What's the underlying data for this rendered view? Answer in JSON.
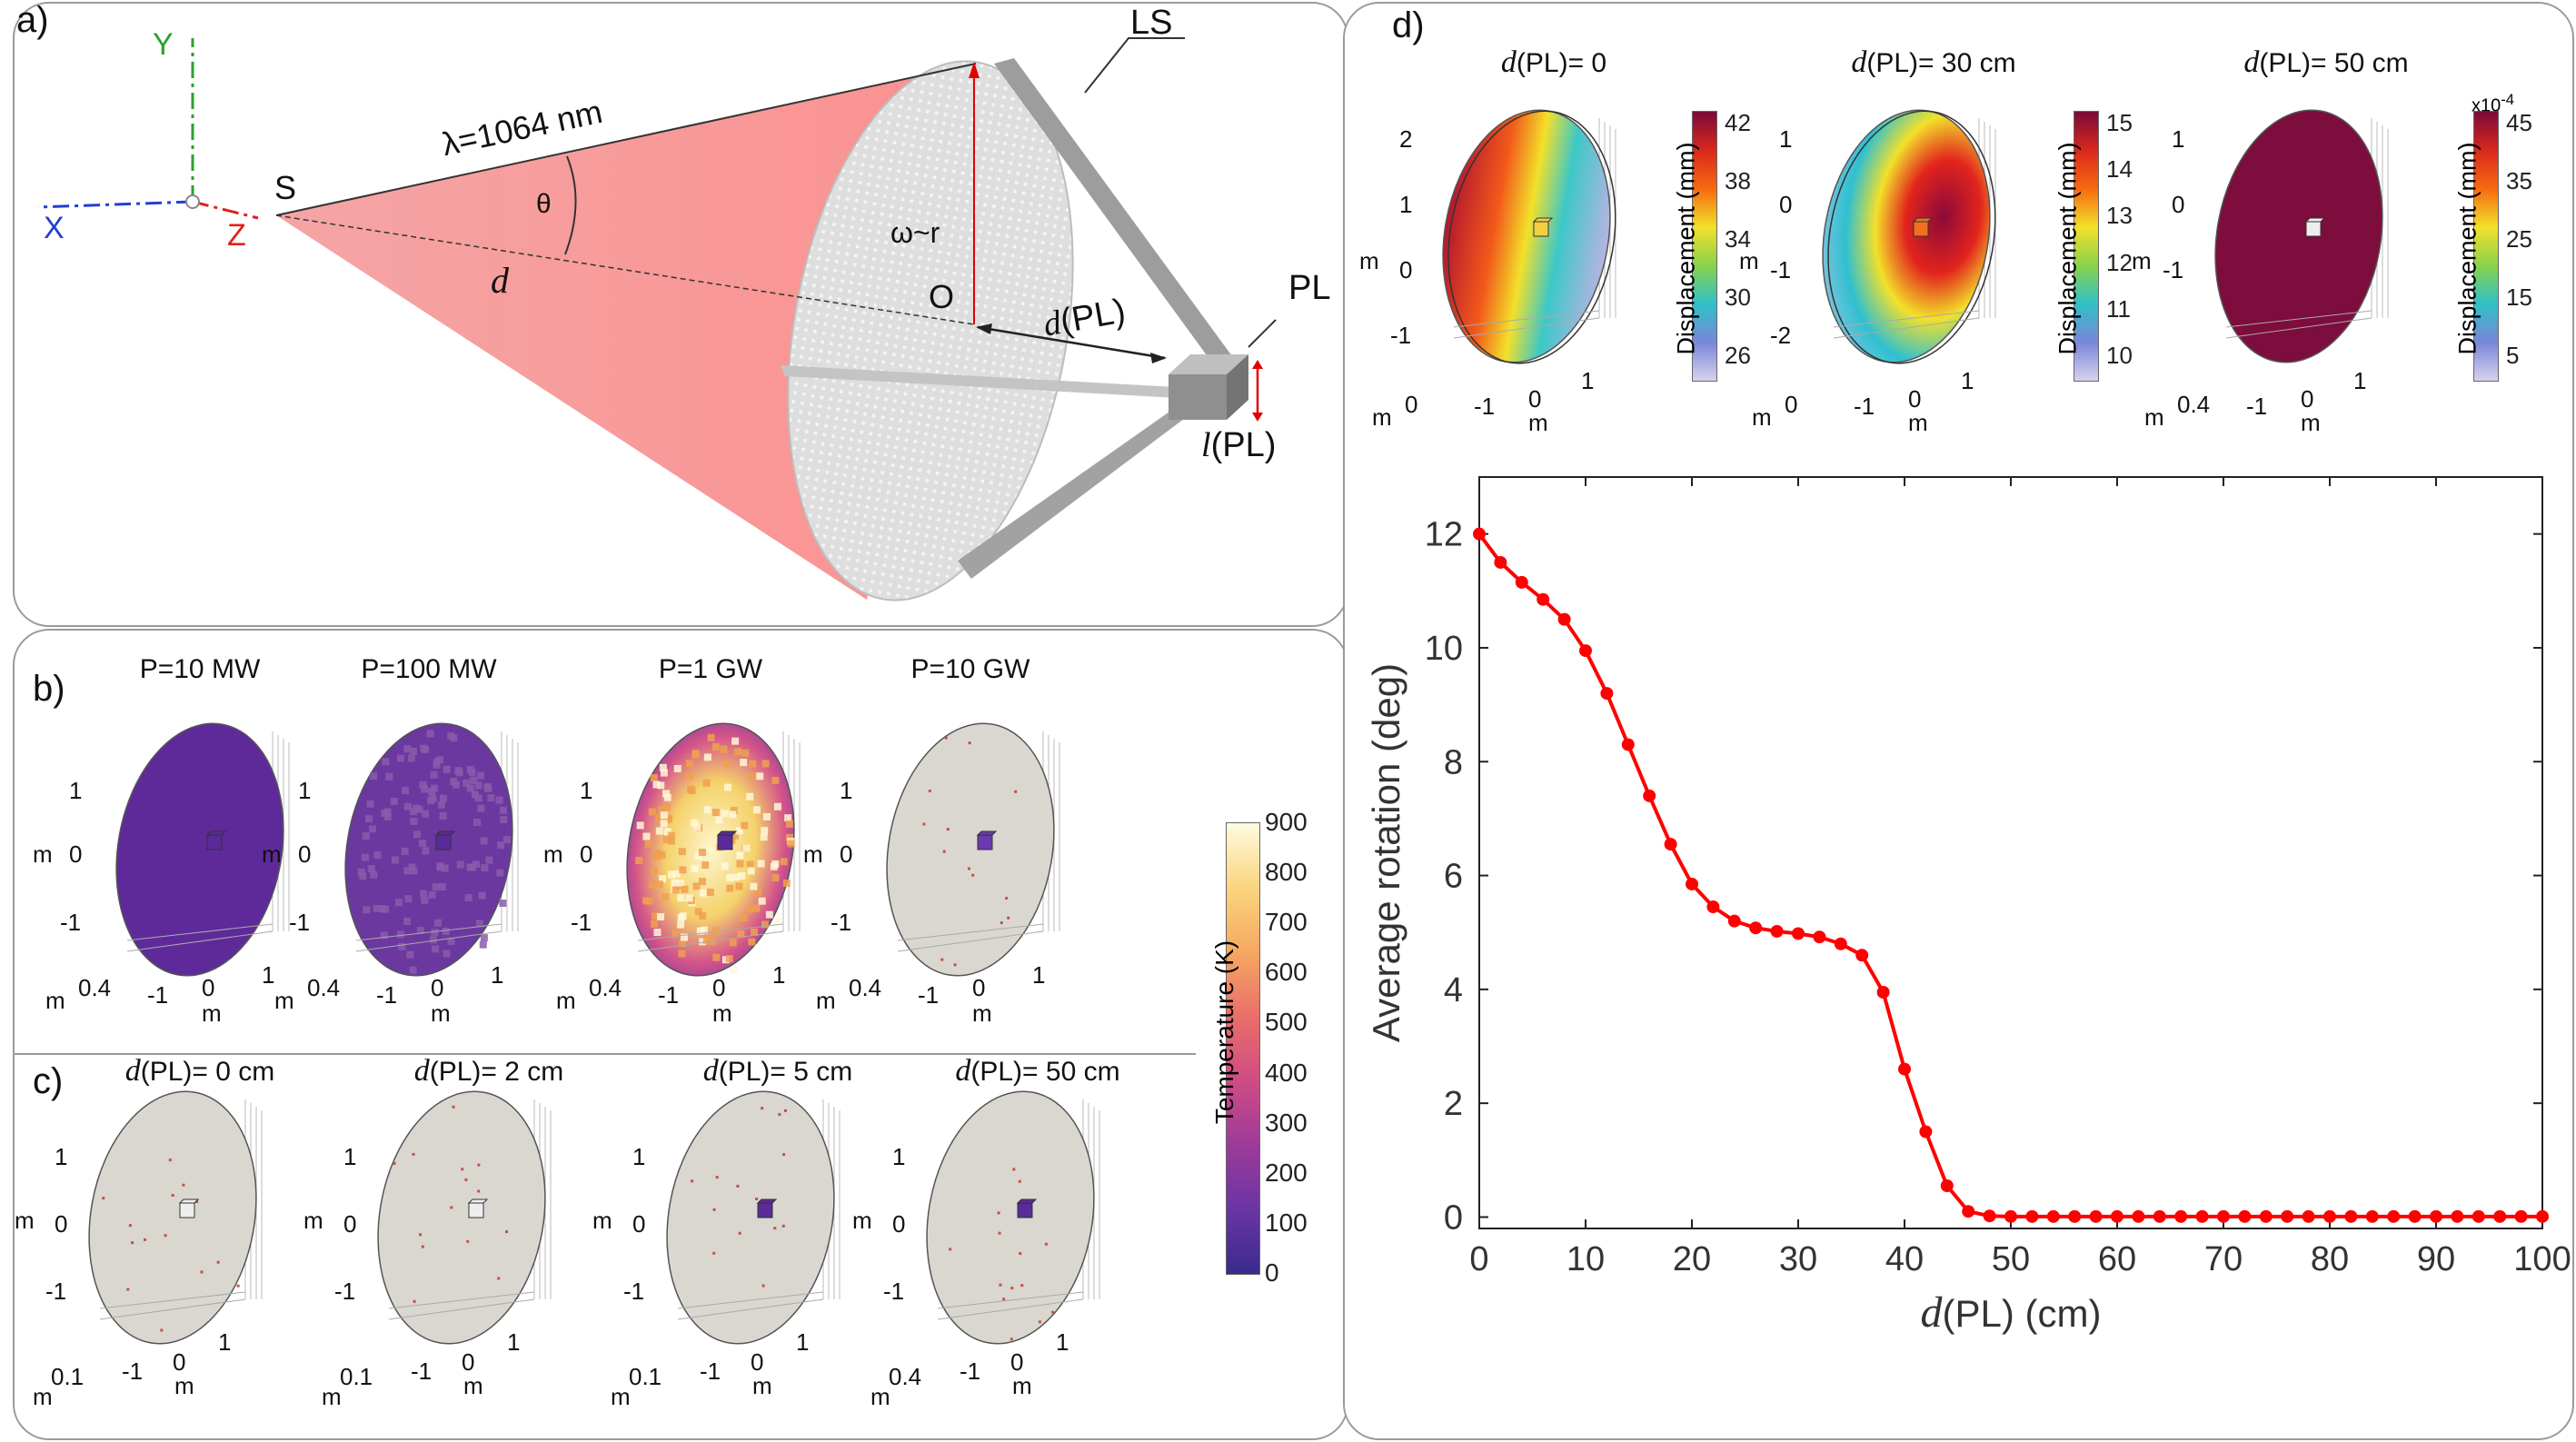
{
  "panel_a": {
    "label": "a)",
    "axis_y": "Y",
    "axis_x": "X",
    "axis_z": "Z",
    "source": "S",
    "wavelength": "λ=1064 nm",
    "theta": "θ",
    "distance": "d",
    "sail": "LS",
    "radius": "ω~r",
    "center": "O",
    "dpl_italic": "d",
    "dpl_rest": "(PL)",
    "payload": "PL",
    "lpl_italic": "l",
    "lpl_rest": "(PL)"
  },
  "panel_b": {
    "label": "b)",
    "titles": [
      "P=10 MW",
      "P=100 MW",
      "P=1 GW",
      "P=10 GW"
    ],
    "y_ticks": [
      "1",
      "0",
      "-1"
    ],
    "y_unit": "m",
    "x_ticks": [
      "0.4",
      "-1",
      "0",
      "1"
    ],
    "x_unit_left": "m",
    "x_unit_mid": "m"
  },
  "panel_c": {
    "label": "c)",
    "titles": [
      {
        "it": "d",
        "rest": "(PL)= 0 cm"
      },
      {
        "it": "d",
        "rest": "(PL)= 2 cm"
      },
      {
        "it": "d",
        "rest": "(PL)= 5 cm"
      },
      {
        "it": "d",
        "rest": "(PL)= 50 cm"
      }
    ],
    "y_ticks": [
      "1",
      "0",
      "-1"
    ],
    "y_unit": "m",
    "x_first": [
      "0.1",
      "0.1",
      "0.1",
      "0.4"
    ],
    "x_ticks": [
      "-1",
      "0",
      "1"
    ],
    "x_unit": "m"
  },
  "temperature_colorbar": {
    "label": "Temperature (K)",
    "ticks": [
      "900",
      "800",
      "700",
      "600",
      "500",
      "400",
      "300",
      "200",
      "100",
      "0"
    ],
    "colors": [
      "#fffbe0",
      "#fbd57e",
      "#f5a862",
      "#ea6e69",
      "#cf4c84",
      "#9d3a9a",
      "#6a35a4",
      "#3a2a8c"
    ]
  },
  "panel_d": {
    "label": "d)",
    "maps": [
      {
        "it": "d",
        "rest": "(PL)= 0",
        "cb_label": "Displacement (mm)",
        "cb_ticks": [
          "42",
          "38",
          "34",
          "30",
          "26"
        ],
        "exp": "",
        "y_ticks": [
          "2",
          "1",
          "0",
          "-1"
        ],
        "y_unit": "m",
        "x_ticks": [
          "0",
          "-1",
          "0",
          "1"
        ],
        "x_unit": "m"
      },
      {
        "it": "d",
        "rest": "(PL)= 30 cm",
        "cb_label": "Displacement (mm)",
        "cb_ticks": [
          "15",
          "14",
          "13",
          "12",
          "11",
          "10"
        ],
        "exp": "",
        "y_ticks": [
          "1",
          "0",
          "-1",
          "-2"
        ],
        "y_unit": "m",
        "x_ticks": [
          "0",
          "-1",
          "0",
          "1"
        ],
        "x_unit": "m"
      },
      {
        "it": "d",
        "rest": "(PL)= 50 cm",
        "cb_label": "Displacement (mm)",
        "cb_ticks": [
          "45",
          "35",
          "25",
          "15",
          "5"
        ],
        "exp": "x10",
        "exp_sup": "-4",
        "y_ticks": [
          "1",
          "0",
          "-1"
        ],
        "y_unit": "m",
        "x_ticks": [
          "0.4",
          "-1",
          "0",
          "1"
        ],
        "x_unit": "m"
      }
    ]
  },
  "chart_data": {
    "type": "line",
    "title": "",
    "xlabel_italic": "d",
    "xlabel_rest": "(PL) (cm)",
    "ylabel": "Average rotation (deg)",
    "xlim": [
      0,
      100
    ],
    "ylim": [
      -0.2,
      13
    ],
    "xticks": [
      0,
      10,
      20,
      30,
      40,
      50,
      60,
      70,
      80,
      90,
      100
    ],
    "yticks": [
      0,
      2,
      4,
      6,
      8,
      10,
      12
    ],
    "grid": false,
    "series": [
      {
        "name": "Average rotation",
        "color": "#ff0000",
        "x": [
          0,
          2,
          4,
          6,
          8,
          10,
          12,
          14,
          16,
          18,
          20,
          22,
          24,
          26,
          28,
          30,
          32,
          34,
          36,
          38,
          40,
          42,
          44,
          46,
          48,
          50,
          52,
          54,
          56,
          58,
          60,
          62,
          64,
          66,
          68,
          70,
          72,
          74,
          76,
          78,
          80,
          82,
          84,
          86,
          88,
          90,
          92,
          94,
          96,
          98,
          100
        ],
        "y": [
          12,
          11.5,
          11.15,
          10.85,
          10.5,
          9.95,
          9.2,
          8.3,
          7.4,
          6.55,
          5.85,
          5.45,
          5.2,
          5.08,
          5.02,
          4.98,
          4.92,
          4.8,
          4.6,
          3.95,
          2.6,
          1.5,
          0.55,
          0.1,
          0.02,
          0.01,
          0.01,
          0.01,
          0.01,
          0.01,
          0.01,
          0.01,
          0.01,
          0.01,
          0.01,
          0.01,
          0.01,
          0.01,
          0.01,
          0.01,
          0.01,
          0.01,
          0.01,
          0.01,
          0.01,
          0.01,
          0.01,
          0.01,
          0.01,
          0.01,
          0.01
        ]
      }
    ]
  }
}
